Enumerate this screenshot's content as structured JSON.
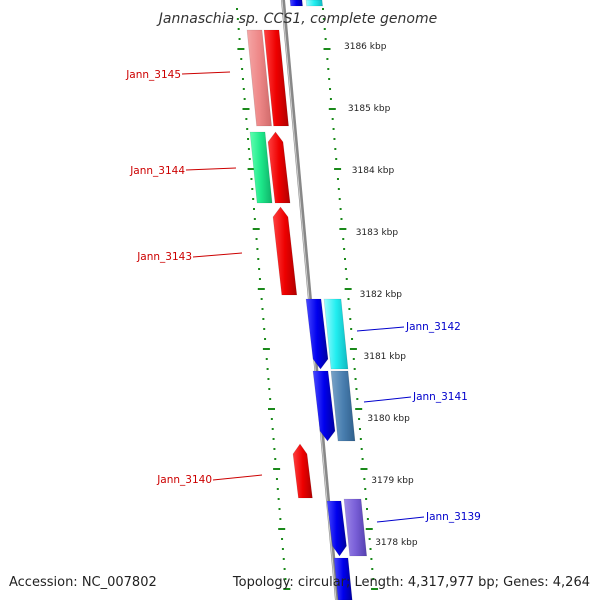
{
  "title": "Jannaschia sp. CCS1, complete genome",
  "footer": {
    "accession": "Accession: NC_007802",
    "summary": "Topology: circular; Length: 4,317,977 bp; Genes: 4,264"
  },
  "colors": {
    "forward_strand": "#ff0000",
    "reverse_strand": "#0000ff",
    "forward_label": "#cc0000",
    "reverse_label": "#0000cc",
    "backbone": "#888888",
    "tick": "#1a8a1a"
  },
  "kbp_ticks": [
    {
      "label": "3186 kbp",
      "kbp": 3186
    },
    {
      "label": "3185 kbp",
      "kbp": 3185
    },
    {
      "label": "3184 kbp",
      "kbp": 3184
    },
    {
      "label": "3183 kbp",
      "kbp": 3183
    },
    {
      "label": "3182 kbp",
      "kbp": 3182
    },
    {
      "label": "3181 kbp",
      "kbp": 3181
    },
    {
      "label": "3180 kbp",
      "kbp": 3180
    },
    {
      "label": "3179 kbp",
      "kbp": 3179
    },
    {
      "label": "3178 kbp",
      "kbp": 3178
    }
  ],
  "gene_labels": [
    {
      "name": "Jann_3145",
      "strand": "forward"
    },
    {
      "name": "Jann_3144",
      "strand": "forward"
    },
    {
      "name": "Jann_3143",
      "strand": "forward"
    },
    {
      "name": "Jann_3140",
      "strand": "forward"
    },
    {
      "name": "Jann_3142",
      "strand": "reverse"
    },
    {
      "name": "Jann_3141",
      "strand": "reverse"
    },
    {
      "name": "Jann_3139",
      "strand": "reverse"
    }
  ]
}
